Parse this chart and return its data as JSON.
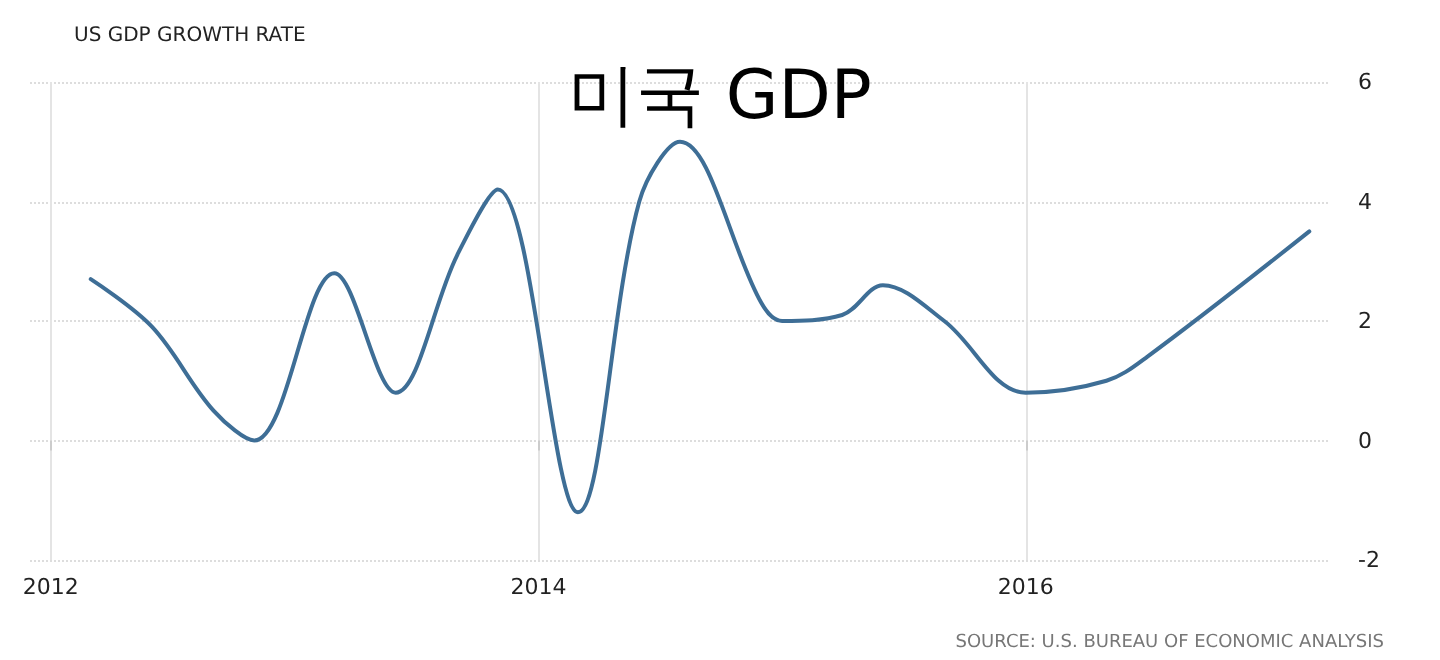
{
  "chart_data": {
    "type": "line",
    "title": "US GDP GROWTH RATE",
    "subtitle": "미국 GDP",
    "annotations": [
      "SOURCE: U.S. BUREAU OF ECONOMIC ANALYSIS"
    ],
    "x": [
      "2012-03",
      "2012-06",
      "2012-09",
      "2012-11",
      "2013-03",
      "2013-06",
      "2013-09",
      "2013-11",
      "2014-03",
      "2014-06",
      "2014-08",
      "2014-12",
      "2015-01",
      "2015-04",
      "2015-06",
      "2015-09",
      "2016-01",
      "2016-05",
      "2016-07",
      "2017-03"
    ],
    "series": [
      {
        "color": "#3e6e96",
        "values": [
          2.7,
          1.9,
          0.5,
          0.0,
          2.8,
          0.8,
          3.1,
          4.2,
          -1.2,
          4.0,
          5.0,
          2.3,
          2.0,
          2.1,
          2.6,
          2.0,
          0.8,
          1.0,
          1.4,
          3.5
        ]
      }
    ],
    "xlim": [
      "2011-12",
      "2017-04"
    ],
    "xticks": [
      "2012",
      "2014",
      "2016"
    ],
    "ylim": [
      -2,
      6
    ],
    "yticks": [
      -2,
      0,
      2,
      4,
      6
    ],
    "grid": true,
    "marker": "none",
    "line_style": "solid"
  }
}
